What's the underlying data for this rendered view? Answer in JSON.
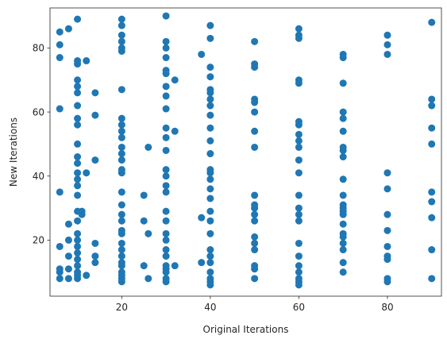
{
  "chart_data": {
    "type": "scatter",
    "xlabel": "Original Iterations",
    "ylabel": "New Iterations",
    "xlim": [
      3.8,
      92.2
    ],
    "ylim": [
      2.5,
      92.5
    ],
    "xticks": [
      20,
      40,
      60,
      80
    ],
    "yticks": [
      20,
      40,
      60,
      80
    ],
    "grid": false,
    "marker_color": "#1f77b4",
    "series": [
      {
        "points": [
          [
            6,
            85
          ],
          [
            6,
            81
          ],
          [
            6,
            77
          ],
          [
            6,
            61
          ],
          [
            6,
            35
          ],
          [
            6,
            18
          ],
          [
            6,
            11
          ],
          [
            6,
            10
          ],
          [
            6,
            8
          ],
          [
            8,
            86
          ],
          [
            8,
            25
          ],
          [
            8,
            20
          ],
          [
            8,
            15
          ],
          [
            8,
            11
          ],
          [
            8,
            8
          ],
          [
            10,
            89
          ],
          [
            10,
            76
          ],
          [
            10,
            75
          ],
          [
            10,
            70
          ],
          [
            10,
            68
          ],
          [
            10,
            66
          ],
          [
            10,
            62
          ],
          [
            10,
            58
          ],
          [
            10,
            56
          ],
          [
            10,
            50
          ],
          [
            10,
            46
          ],
          [
            10,
            44
          ],
          [
            10,
            41
          ],
          [
            10,
            39
          ],
          [
            10,
            37
          ],
          [
            10,
            34
          ],
          [
            10,
            29
          ],
          [
            10,
            26
          ],
          [
            10,
            22
          ],
          [
            10,
            20
          ],
          [
            10,
            18
          ],
          [
            10,
            16
          ],
          [
            10,
            14
          ],
          [
            10,
            12
          ],
          [
            10,
            10
          ],
          [
            10,
            9
          ],
          [
            10,
            8
          ],
          [
            11,
            29
          ],
          [
            11,
            28
          ],
          [
            12,
            76
          ],
          [
            12,
            41
          ],
          [
            12,
            9
          ],
          [
            14,
            66
          ],
          [
            14,
            59
          ],
          [
            14,
            45
          ],
          [
            14,
            19
          ],
          [
            14,
            15
          ],
          [
            14,
            13
          ],
          [
            20,
            89
          ],
          [
            20,
            87
          ],
          [
            20,
            84
          ],
          [
            20,
            82
          ],
          [
            20,
            80
          ],
          [
            20,
            79
          ],
          [
            20,
            67
          ],
          [
            20,
            58
          ],
          [
            20,
            56
          ],
          [
            20,
            54
          ],
          [
            20,
            52
          ],
          [
            20,
            49
          ],
          [
            20,
            47
          ],
          [
            20,
            45
          ],
          [
            20,
            42
          ],
          [
            20,
            41
          ],
          [
            20,
            35
          ],
          [
            20,
            31
          ],
          [
            20,
            28
          ],
          [
            20,
            26
          ],
          [
            20,
            23
          ],
          [
            20,
            22
          ],
          [
            20,
            19
          ],
          [
            20,
            17
          ],
          [
            20,
            15
          ],
          [
            20,
            13
          ],
          [
            20,
            12
          ],
          [
            20,
            10
          ],
          [
            20,
            9
          ],
          [
            20,
            8
          ],
          [
            20,
            7
          ],
          [
            25,
            34
          ],
          [
            25,
            26
          ],
          [
            25,
            12
          ],
          [
            26,
            49
          ],
          [
            26,
            22
          ],
          [
            26,
            8
          ],
          [
            30,
            90
          ],
          [
            30,
            82
          ],
          [
            30,
            80
          ],
          [
            30,
            77
          ],
          [
            30,
            73
          ],
          [
            30,
            72
          ],
          [
            30,
            68
          ],
          [
            30,
            65
          ],
          [
            30,
            61
          ],
          [
            30,
            55
          ],
          [
            30,
            52
          ],
          [
            30,
            48
          ],
          [
            30,
            42
          ],
          [
            30,
            40
          ],
          [
            30,
            37
          ],
          [
            30,
            35
          ],
          [
            30,
            29
          ],
          [
            30,
            26
          ],
          [
            30,
            22
          ],
          [
            30,
            20
          ],
          [
            30,
            17
          ],
          [
            30,
            15
          ],
          [
            30,
            12
          ],
          [
            30,
            11
          ],
          [
            30,
            10
          ],
          [
            30,
            8
          ],
          [
            30,
            7
          ],
          [
            32,
            70
          ],
          [
            32,
            54
          ],
          [
            32,
            12
          ],
          [
            38,
            78
          ],
          [
            38,
            27
          ],
          [
            38,
            13
          ],
          [
            40,
            87
          ],
          [
            40,
            83
          ],
          [
            40,
            74
          ],
          [
            40,
            71
          ],
          [
            40,
            67
          ],
          [
            40,
            66
          ],
          [
            40,
            64
          ],
          [
            40,
            62
          ],
          [
            40,
            59
          ],
          [
            40,
            55
          ],
          [
            40,
            51
          ],
          [
            40,
            47
          ],
          [
            40,
            42
          ],
          [
            40,
            41
          ],
          [
            40,
            39
          ],
          [
            40,
            36
          ],
          [
            40,
            33
          ],
          [
            40,
            29
          ],
          [
            40,
            26
          ],
          [
            40,
            22
          ],
          [
            40,
            17
          ],
          [
            40,
            15
          ],
          [
            40,
            13
          ],
          [
            40,
            10
          ],
          [
            40,
            8
          ],
          [
            40,
            7
          ],
          [
            40,
            6
          ],
          [
            50,
            82
          ],
          [
            50,
            75
          ],
          [
            50,
            74
          ],
          [
            50,
            64
          ],
          [
            50,
            63
          ],
          [
            50,
            60
          ],
          [
            50,
            54
          ],
          [
            50,
            49
          ],
          [
            50,
            34
          ],
          [
            50,
            31
          ],
          [
            50,
            30
          ],
          [
            50,
            28
          ],
          [
            50,
            26
          ],
          [
            50,
            21
          ],
          [
            50,
            19
          ],
          [
            50,
            17
          ],
          [
            50,
            12
          ],
          [
            50,
            11
          ],
          [
            50,
            8
          ],
          [
            60,
            86
          ],
          [
            60,
            84
          ],
          [
            60,
            83
          ],
          [
            60,
            70
          ],
          [
            60,
            69
          ],
          [
            60,
            57
          ],
          [
            60,
            56
          ],
          [
            60,
            53
          ],
          [
            60,
            51
          ],
          [
            60,
            49
          ],
          [
            60,
            45
          ],
          [
            60,
            41
          ],
          [
            60,
            34
          ],
          [
            60,
            30
          ],
          [
            60,
            28
          ],
          [
            60,
            26
          ],
          [
            60,
            19
          ],
          [
            60,
            15
          ],
          [
            60,
            12
          ],
          [
            60,
            10
          ],
          [
            60,
            8
          ],
          [
            60,
            7
          ],
          [
            60,
            6
          ],
          [
            70,
            78
          ],
          [
            70,
            77
          ],
          [
            70,
            69
          ],
          [
            70,
            60
          ],
          [
            70,
            58
          ],
          [
            70,
            54
          ],
          [
            70,
            49
          ],
          [
            70,
            48
          ],
          [
            70,
            46
          ],
          [
            70,
            39
          ],
          [
            70,
            34
          ],
          [
            70,
            31
          ],
          [
            70,
            30
          ],
          [
            70,
            29
          ],
          [
            70,
            28
          ],
          [
            70,
            25
          ],
          [
            70,
            22
          ],
          [
            70,
            21
          ],
          [
            70,
            19
          ],
          [
            70,
            17
          ],
          [
            70,
            13
          ],
          [
            70,
            10
          ],
          [
            80,
            84
          ],
          [
            80,
            81
          ],
          [
            80,
            78
          ],
          [
            80,
            41
          ],
          [
            80,
            36
          ],
          [
            80,
            28
          ],
          [
            80,
            23
          ],
          [
            80,
            18
          ],
          [
            80,
            15
          ],
          [
            80,
            14
          ],
          [
            80,
            8
          ],
          [
            80,
            7
          ],
          [
            90,
            88
          ],
          [
            90,
            64
          ],
          [
            90,
            62
          ],
          [
            90,
            55
          ],
          [
            90,
            50
          ],
          [
            90,
            35
          ],
          [
            90,
            32
          ],
          [
            90,
            27
          ],
          [
            90,
            17
          ],
          [
            90,
            8
          ]
        ]
      }
    ]
  }
}
